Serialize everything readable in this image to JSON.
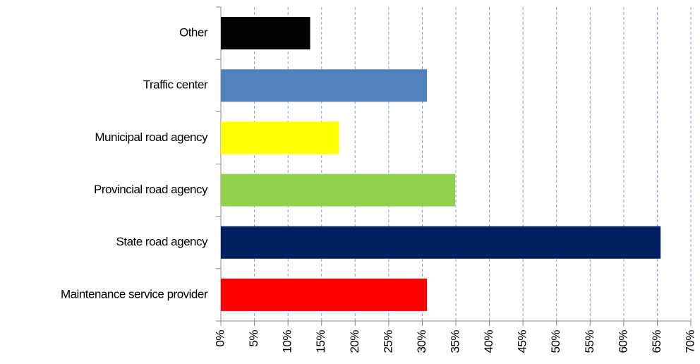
{
  "chart_data": {
    "type": "barh",
    "categories": [
      "Other",
      "Traffic center",
      "Municipal road agency",
      "Provincial road agency",
      "State road agency",
      "Maintenance service provider"
    ],
    "values": [
      13.3,
      30.7,
      17.6,
      34.9,
      65.5,
      30.7
    ],
    "colors": [
      "#000000",
      "#4f81bd",
      "#ffff00",
      "#92d050",
      "#002060",
      "#ff0000"
    ],
    "xlim": [
      0,
      70
    ],
    "xticks": [
      {
        "value": 0,
        "label": "0%"
      },
      {
        "value": 5,
        "label": "5%"
      },
      {
        "value": 10,
        "label": "10%"
      },
      {
        "value": 15,
        "label": "15%"
      },
      {
        "value": 20,
        "label": "20%"
      },
      {
        "value": 25,
        "label": "25%"
      },
      {
        "value": 30,
        "label": "30%"
      },
      {
        "value": 35,
        "label": "35%"
      },
      {
        "value": 40,
        "label": "40%"
      },
      {
        "value": 45,
        "label": "45%"
      },
      {
        "value": 50,
        "label": "50%"
      },
      {
        "value": 55,
        "label": "55%"
      },
      {
        "value": 60,
        "label": "60%"
      },
      {
        "value": 65,
        "label": "65%"
      },
      {
        "value": 70,
        "label": "70%"
      }
    ],
    "grid": true
  }
}
